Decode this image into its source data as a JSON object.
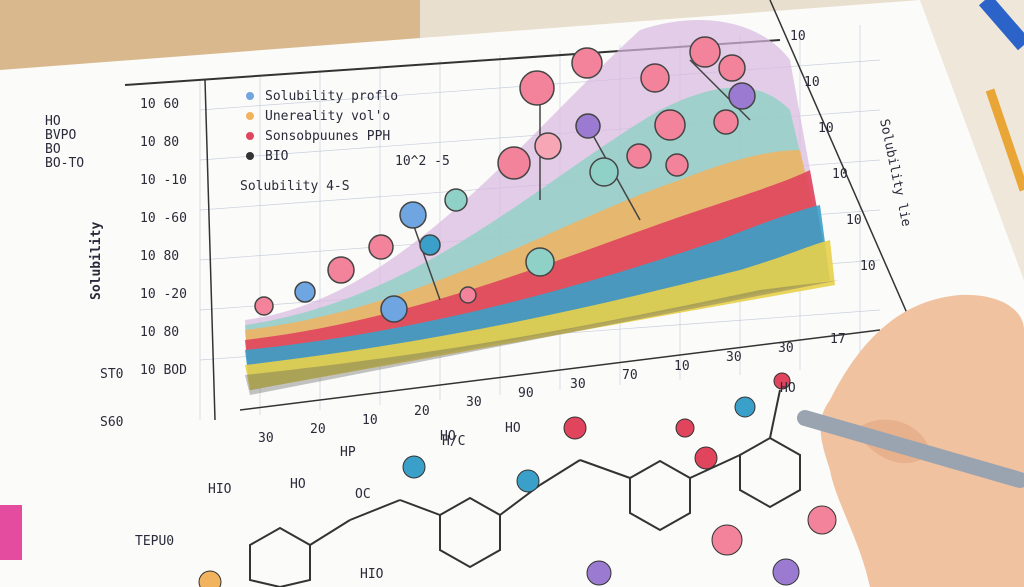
{
  "legend": {
    "items": [
      "Solubility proflo",
      "Unereality vol'o",
      "Sonsobpuunes PPH",
      "BIO"
    ]
  },
  "chart_label": "Solubility 4-S",
  "annotation": "10^2 -5",
  "y_axis_title": "Solubility",
  "right_axis_title": "Solubility lie",
  "y_tick_labels": [
    "10 60",
    "10 80",
    "10 -10",
    "10 -60",
    "10 80",
    "10 -20",
    "10 80",
    "10 BOD"
  ],
  "right_tick_labels": [
    "10",
    "10",
    "10",
    "10",
    "10",
    "10"
  ],
  "x_tick_labels": [
    "30",
    "20",
    "10",
    "20",
    "30",
    "90",
    "30",
    "70",
    "10",
    "30",
    "30",
    "17"
  ],
  "side_notes": [
    "HO",
    "BVPO",
    "BO",
    "BO-TO"
  ],
  "left_notes": [
    "ST0",
    "S60"
  ],
  "molecule_labels": [
    "HO",
    "HO",
    "H/C",
    "HP",
    "HIO",
    "HO",
    "OC",
    "HIO",
    "TEPU0",
    "HO"
  ]
}
